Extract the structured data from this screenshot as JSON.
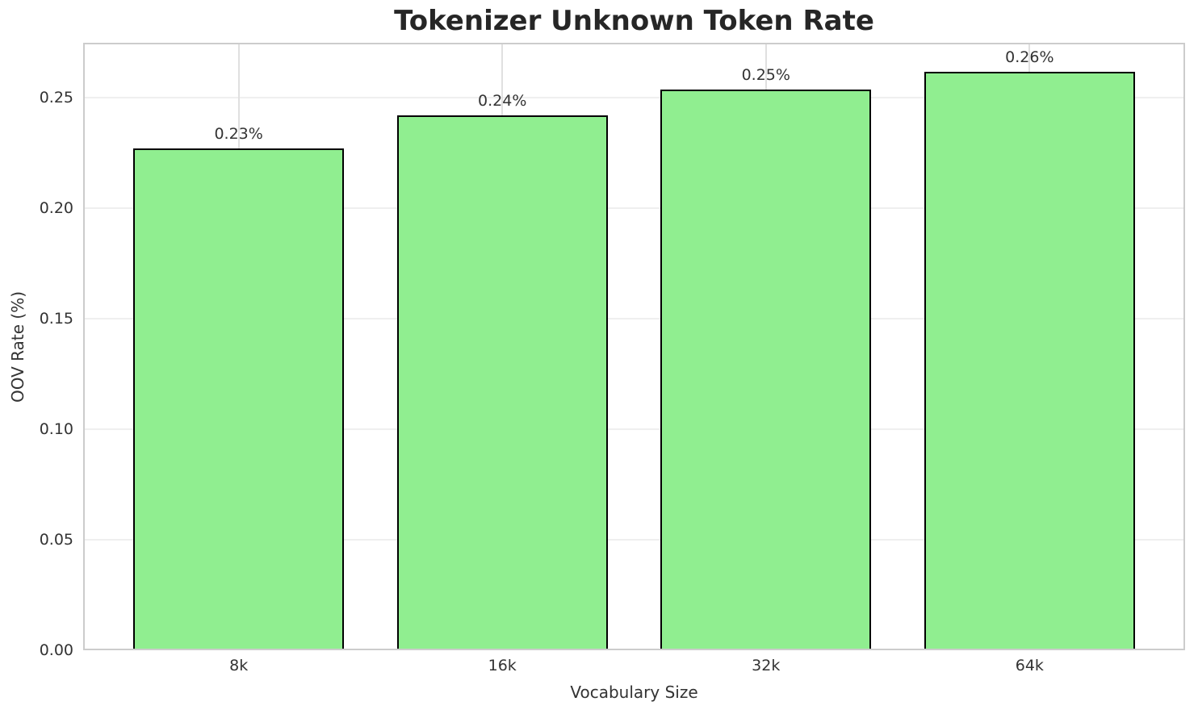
{
  "chart_data": {
    "type": "bar",
    "title": "Tokenizer Unknown Token Rate",
    "xlabel": "Vocabulary Size",
    "ylabel": "OOV Rate (%)",
    "categories": [
      "8k",
      "16k",
      "32k",
      "64k"
    ],
    "values": [
      0.227,
      0.242,
      0.254,
      0.262
    ],
    "bar_labels": [
      "0.23%",
      "0.24%",
      "0.25%",
      "0.26%"
    ],
    "ytick_values": [
      0.0,
      0.05,
      0.1,
      0.15,
      0.2,
      0.25
    ],
    "ytick_labels": [
      "0.00",
      "0.05",
      "0.10",
      "0.15",
      "0.20",
      "0.25"
    ],
    "ylim": [
      0,
      0.275
    ],
    "grid": true,
    "legend_position": "none",
    "colors": {
      "bar_fill": "#90EE90",
      "bar_edge": "#000000",
      "grid_horizontal": "#efefef",
      "grid_vertical": "#e0e0e0",
      "spine": "#cccccc",
      "title_text": "#262626",
      "label_text": "#333333",
      "background": "#ffffff"
    }
  }
}
